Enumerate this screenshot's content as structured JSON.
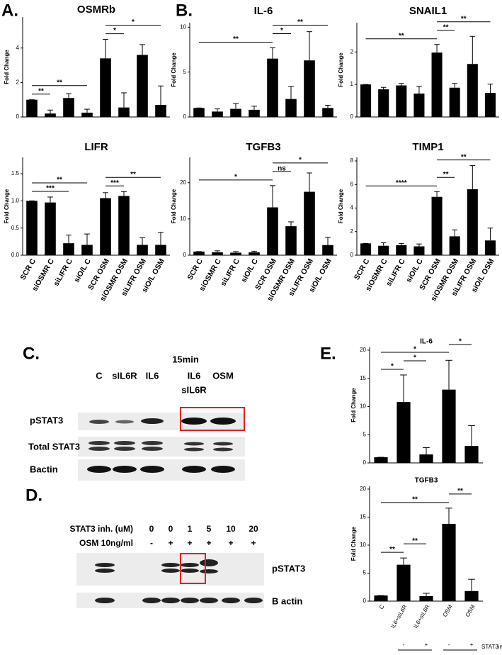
{
  "panels": {
    "a": "A.",
    "b": "B.",
    "c": "C.",
    "d": "D.",
    "e": "E."
  },
  "chart_data": [
    {
      "type": "bar",
      "title": "OSMRb",
      "y_label": "Fold Change",
      "color": "#000000",
      "categories": [
        null,
        null,
        null,
        null,
        null,
        null,
        null,
        null
      ],
      "values": [
        1.0,
        0.2,
        1.1,
        0.25,
        3.4,
        0.55,
        3.6,
        0.7
      ],
      "errors": [
        0,
        0.2,
        0.25,
        0.2,
        1.1,
        0.85,
        0.6,
        1.1
      ],
      "ylim": [
        0,
        5.8
      ],
      "yticks": [
        0,
        2,
        4
      ],
      "significance": [
        {
          "from": 0,
          "to": 1,
          "label": "**"
        },
        {
          "from": 0,
          "to": 3,
          "label": "**"
        },
        {
          "from": 4,
          "to": 5,
          "label": "*"
        },
        {
          "from": 4,
          "to": 7,
          "label": "*"
        }
      ]
    },
    {
      "type": "bar",
      "title": "IL-6",
      "y_label": "Fold Change",
      "color": "#000000",
      "categories": [
        null,
        null,
        null,
        null,
        null,
        null,
        null,
        null
      ],
      "values": [
        1.0,
        0.6,
        0.9,
        0.8,
        6.5,
        2.0,
        6.3,
        1.0
      ],
      "errors": [
        0,
        0.3,
        0.6,
        0.4,
        1.2,
        1.4,
        3.2,
        0.3
      ],
      "ylim": [
        0,
        10.5
      ],
      "yticks": [
        0,
        5,
        10
      ],
      "significance": [
        {
          "from": 0,
          "to": 4,
          "label": "**"
        },
        {
          "from": 4,
          "to": 5,
          "label": "*"
        },
        {
          "from": 4,
          "to": 7,
          "label": "**"
        }
      ]
    },
    {
      "type": "bar",
      "title": "SNAIL1",
      "y_label": "Fold Change",
      "color": "#000000",
      "categories": [
        null,
        null,
        null,
        null,
        null,
        null,
        null,
        null
      ],
      "values": [
        1.0,
        0.85,
        0.97,
        0.72,
        1.98,
        0.9,
        1.63,
        0.74
      ],
      "errors": [
        0,
        0.06,
        0.06,
        0.22,
        0.25,
        0.13,
        0.85,
        0.27
      ],
      "ylim": [
        0,
        2.9
      ],
      "yticks": [
        0,
        1,
        2
      ],
      "significance": [
        {
          "from": 0,
          "to": 4,
          "label": "**"
        },
        {
          "from": 4,
          "to": 5,
          "label": "**"
        },
        {
          "from": 4,
          "to": 7,
          "label": "**"
        }
      ]
    },
    {
      "type": "bar",
      "title": "LIFR",
      "y_label": "Fold Change",
      "color": "#000000",
      "categories": [
        "SCR C",
        "siOSMR C",
        "siLIFR C",
        "siO/L C",
        "SCR OSM",
        "siOSMR OSM",
        "siLIFR OSM",
        "siO/L OSM"
      ],
      "values": [
        1.0,
        0.97,
        0.22,
        0.19,
        1.05,
        1.09,
        0.19,
        0.19
      ],
      "errors": [
        0,
        0.1,
        0.15,
        0.2,
        0.1,
        0.08,
        0.13,
        0.23
      ],
      "ylim": [
        0,
        1.8
      ],
      "yticks": [
        {
          "value": 0,
          "label": "0.0"
        },
        {
          "value": 0.5,
          "label": "0.5"
        },
        {
          "value": 1,
          "label": "1.0"
        },
        {
          "value": 1.5,
          "label": "1.5"
        }
      ],
      "significance": [
        {
          "from": 0,
          "to": 2,
          "label": "***"
        },
        {
          "from": 0,
          "to": 3,
          "label": "**"
        },
        {
          "from": 4,
          "to": 5,
          "label": "***"
        },
        {
          "from": 4,
          "to": 7,
          "label": "**"
        }
      ]
    },
    {
      "type": "bar",
      "title": "TGFB3",
      "y_label": "Fold Change",
      "color": "#000000",
      "categories": [
        "SCR C",
        "siOSMR C",
        "siLIFR C",
        "siO/L C",
        "SCR OSM",
        "siOSMR OSM",
        "siLIFR OSM",
        "siO/L OSM"
      ],
      "values": [
        1.0,
        0.8,
        0.7,
        0.8,
        13.2,
        8.0,
        17.5,
        2.8
      ],
      "errors": [
        0,
        0.4,
        0.3,
        0.3,
        6.0,
        1.2,
        5.2,
        2.1
      ],
      "ylim": [
        0,
        27
      ],
      "yticks": [
        0,
        10,
        20
      ],
      "significance": [
        {
          "from": 0,
          "to": 4,
          "label": "*"
        },
        {
          "from": 4,
          "to": 5,
          "label": "ns"
        },
        {
          "from": 4,
          "to": 7,
          "label": "*"
        }
      ]
    },
    {
      "type": "bar",
      "title": "TIMP1",
      "y_label": "Fold Change",
      "color": "#000000",
      "categories": [
        "SCR C",
        "siOSMR C",
        "siLIFR C",
        "siO/L C",
        "SCR OSM",
        "siOSMR OSM",
        "siLIFR OSM",
        "siO/L OSM"
      ],
      "values": [
        1.0,
        0.8,
        0.85,
        0.75,
        4.95,
        1.6,
        5.6,
        1.25
      ],
      "errors": [
        0,
        0.25,
        0.15,
        0.2,
        0.45,
        0.55,
        2.0,
        1.05
      ],
      "ylim": [
        0,
        8.3
      ],
      "yticks": [
        0,
        2,
        4,
        6,
        8
      ],
      "significance": [
        {
          "from": 0,
          "to": 4,
          "label": "****"
        },
        {
          "from": 4,
          "to": 5,
          "label": "**"
        },
        {
          "from": 4,
          "to": 7,
          "label": "**"
        }
      ]
    },
    {
      "type": "bar",
      "title": "IL-6",
      "y_label": "Fold Change",
      "color": "#000000",
      "categories": [
        null,
        null,
        null,
        null,
        null
      ],
      "values": [
        1.0,
        10.8,
        1.5,
        13.0,
        3.0
      ],
      "errors": [
        0,
        4.8,
        1.2,
        5.2,
        3.6
      ],
      "ylim": [
        0,
        20.5
      ],
      "yticks": [
        0,
        5,
        10,
        15,
        20
      ],
      "significance": [
        {
          "from": 0,
          "to": 1,
          "label": "*"
        },
        {
          "from": 1,
          "to": 2,
          "label": "*"
        },
        {
          "from": 0,
          "to": 3,
          "label": "*"
        },
        {
          "from": 3,
          "to": 4,
          "label": "*"
        }
      ]
    },
    {
      "type": "bar",
      "title": "TGFB3",
      "y_label": "Fold Change",
      "color": "#000000",
      "categories": [
        "C",
        "IL6+sIL6R",
        "IL6+sIL6R",
        "OSM",
        "OSM"
      ],
      "values": [
        1.0,
        6.5,
        0.9,
        13.8,
        1.8
      ],
      "errors": [
        0,
        1.2,
        0.5,
        2.8,
        2.1
      ],
      "ylim": [
        0,
        20.5
      ],
      "yticks": [
        0,
        5,
        10,
        15,
        20
      ],
      "significance": [
        {
          "from": 0,
          "to": 1,
          "label": "**"
        },
        {
          "from": 1,
          "to": 2,
          "label": "**"
        },
        {
          "from": 0,
          "to": 3,
          "label": "**"
        },
        {
          "from": 3,
          "to": 4,
          "label": "**"
        }
      ],
      "treatment": {
        "label": "STAT3in",
        "values": [
          null,
          "-",
          "+",
          "-",
          "+"
        ]
      }
    }
  ],
  "blot_c": {
    "time": "15min",
    "lanes": [
      [
        "C"
      ],
      [
        "sIL6R"
      ],
      [
        "IL6"
      ],
      [
        "IL6",
        "sIL6R"
      ],
      [
        "OSM"
      ]
    ],
    "bands": [
      "pSTAT3",
      "Total STAT3",
      "Bactin"
    ]
  },
  "blot_d": {
    "rows": [
      {
        "label": "STAT3 inh. (uM)",
        "values": [
          0,
          0,
          1,
          5,
          10,
          20
        ]
      },
      {
        "label": "OSM 10ng/ml",
        "values": [
          "-",
          "+",
          "+",
          "+",
          "+",
          "+"
        ]
      }
    ],
    "bands": [
      "pSTAT3",
      "B actin"
    ]
  }
}
